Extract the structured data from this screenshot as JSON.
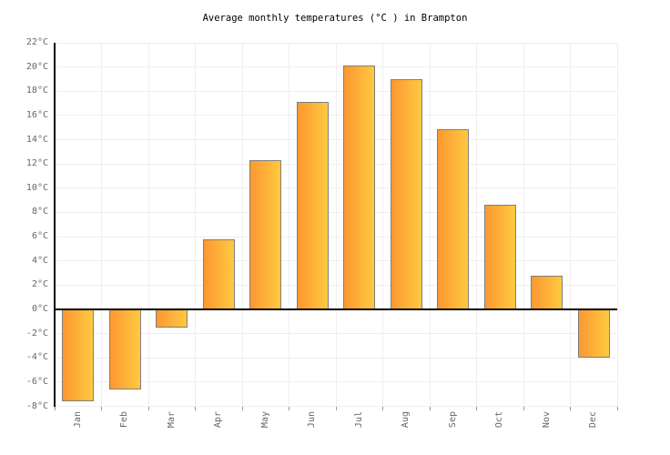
{
  "chart_data": {
    "type": "bar",
    "title": "Average monthly temperatures (°C ) in Brampton",
    "categories": [
      "Jan",
      "Feb",
      "Mar",
      "Apr",
      "May",
      "Jun",
      "Jul",
      "Aug",
      "Sep",
      "Oct",
      "Nov",
      "Dec"
    ],
    "values": [
      -7.6,
      -6.6,
      -1.5,
      5.8,
      12.3,
      17.1,
      20.1,
      19.0,
      14.9,
      8.6,
      2.8,
      -4.0
    ],
    "xlabel": "",
    "ylabel": "°C",
    "ylim": [
      -8,
      22
    ],
    "ytick_step": 2,
    "ytick_suffix": "°C",
    "grid": true,
    "legend_position": "none",
    "colors": {
      "bar_gradient_left": "#FB9831",
      "bar_gradient_right": "#FFC940",
      "bar_border": "#7F7F7F",
      "grid_line": "#EEEEEE",
      "axis_line": "#000000",
      "zero_line": "#000000",
      "tick_mark": "#999999",
      "tick_label": "#666666",
      "title_color": "#000000",
      "background": "#FFFFFF"
    }
  }
}
